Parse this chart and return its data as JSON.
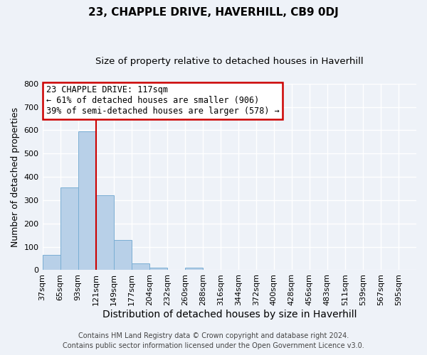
{
  "title": "23, CHAPPLE DRIVE, HAVERHILL, CB9 0DJ",
  "subtitle": "Size of property relative to detached houses in Haverhill",
  "xlabel": "Distribution of detached houses by size in Haverhill",
  "ylabel": "Number of detached properties",
  "footer_line1": "Contains HM Land Registry data © Crown copyright and database right 2024.",
  "footer_line2": "Contains public sector information licensed under the Open Government Licence v3.0.",
  "bar_labels": [
    "37sqm",
    "65sqm",
    "93sqm",
    "121sqm",
    "149sqm",
    "177sqm",
    "204sqm",
    "232sqm",
    "260sqm",
    "288sqm",
    "316sqm",
    "344sqm",
    "372sqm",
    "400sqm",
    "428sqm",
    "456sqm",
    "483sqm",
    "511sqm",
    "539sqm",
    "567sqm",
    "595sqm"
  ],
  "bar_values": [
    65,
    355,
    595,
    320,
    130,
    30,
    10,
    0,
    10,
    0,
    0,
    0,
    0,
    0,
    0,
    0,
    0,
    0,
    0,
    0,
    0
  ],
  "bar_color": "#b8d0e8",
  "bar_edgecolor": "#7aaed4",
  "ylim": [
    0,
    800
  ],
  "yticks": [
    0,
    100,
    200,
    300,
    400,
    500,
    600,
    700,
    800
  ],
  "vline_x": 3.0,
  "vline_color": "#cc0000",
  "annotation_line1": "23 CHAPPLE DRIVE: 117sqm",
  "annotation_line2": "← 61% of detached houses are smaller (906)",
  "annotation_line3": "39% of semi-detached houses are larger (578) →",
  "annotation_fontsize": 8.5,
  "title_fontsize": 11,
  "subtitle_fontsize": 9.5,
  "xlabel_fontsize": 10,
  "ylabel_fontsize": 9,
  "tick_fontsize": 8,
  "footer_fontsize": 7,
  "background_color": "#eef2f8",
  "grid_color": "#ffffff"
}
